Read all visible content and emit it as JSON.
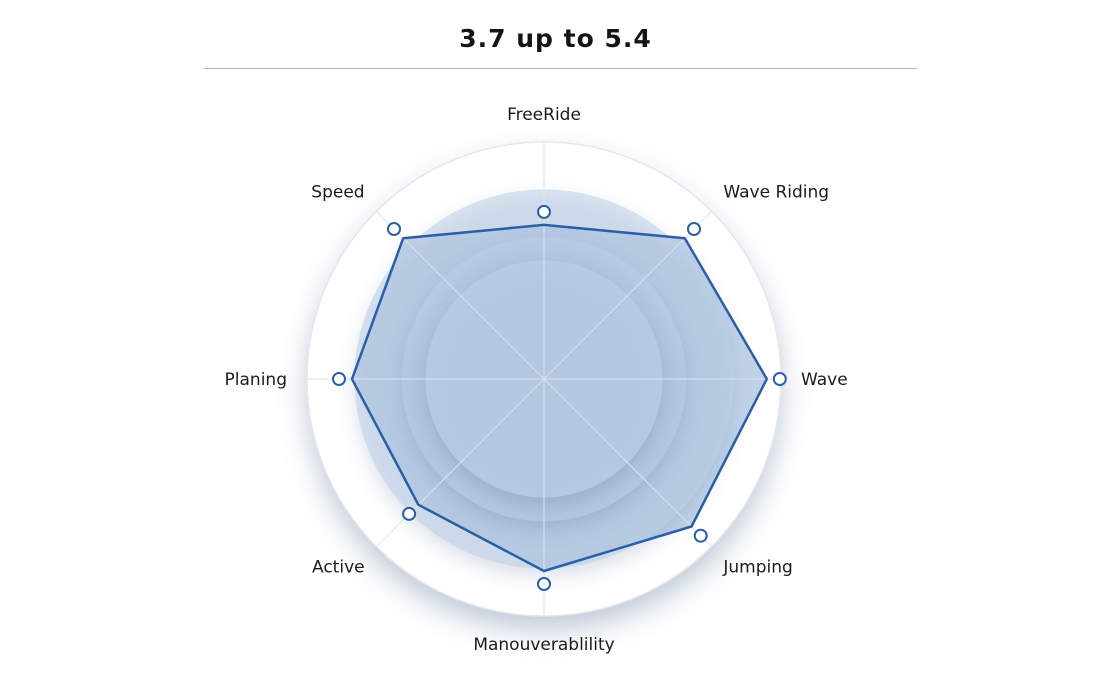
{
  "title": "3.7 up to 5.4",
  "chart_data": {
    "type": "radar",
    "title": "3.7 up to 5.4",
    "axes": [
      "FreeRide",
      "Wave Riding",
      "Wave",
      "Jumping",
      "Manouverablility",
      "Active",
      "Planing",
      "Speed"
    ],
    "range": [
      0,
      10
    ],
    "series": [
      {
        "values": [
          6.5,
          8.4,
          9.4,
          8.8,
          8.1,
          7.5,
          8.1,
          8.4
        ]
      }
    ],
    "grid": true,
    "colors": {
      "line": "#2a5ea8",
      "fill": "#b9cde6",
      "grid": "#e4e7ec"
    }
  }
}
